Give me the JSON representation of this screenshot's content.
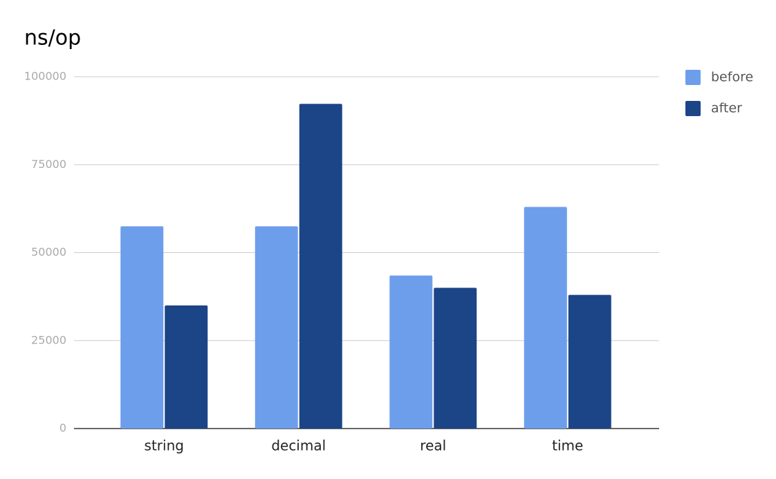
{
  "chart_data": {
    "type": "grouped_bar",
    "title": "ns/op",
    "categories": [
      "string",
      "decimal",
      "real",
      "time"
    ],
    "series": [
      {
        "name": "before",
        "color": "#6d9eeb",
        "values": [
          57500,
          57500,
          43500,
          63000
        ]
      },
      {
        "name": "after",
        "color": "#1c4587",
        "values": [
          35000,
          92300,
          40000,
          38000
        ]
      }
    ],
    "ylim": [
      0,
      100000
    ],
    "yticks": [
      0,
      25000,
      50000,
      75000,
      100000
    ],
    "grid": true,
    "legend": "right"
  }
}
